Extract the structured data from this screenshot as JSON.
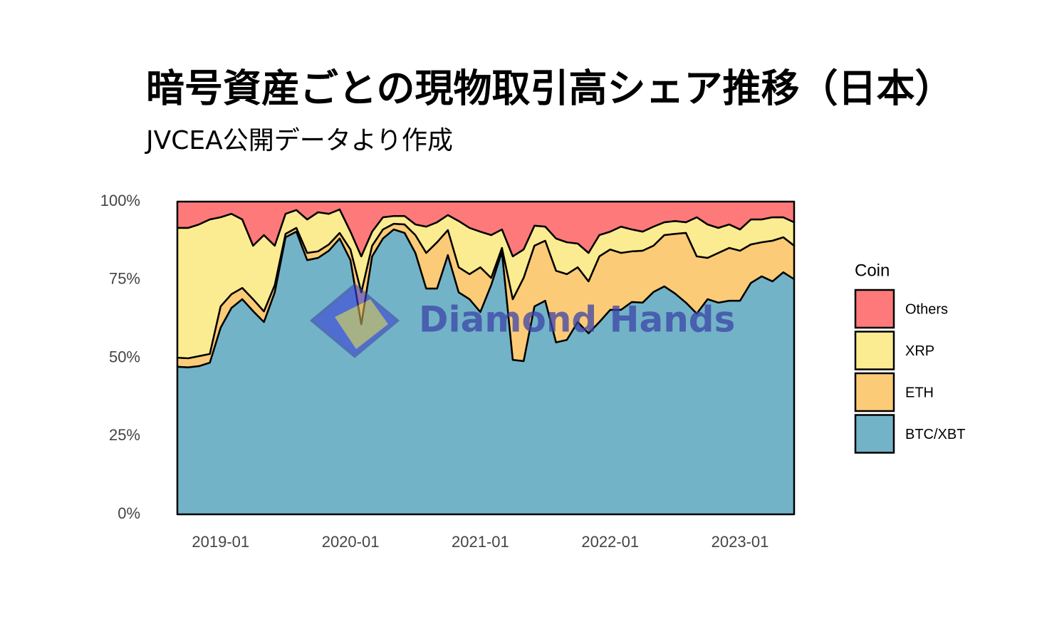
{
  "chart_data": {
    "type": "stacked_area",
    "title": "暗号資産ごとの現物取引高シェア推移（日本）",
    "subtitle": "JVCEA公開データより作成",
    "watermark": "Diamond Hands",
    "legend_title": "Coin",
    "legend": "right",
    "x": [
      "2018-09",
      "2018-10",
      "2018-11",
      "2018-12",
      "2019-01",
      "2019-02",
      "2019-03",
      "2019-04",
      "2019-05",
      "2019-06",
      "2019-07",
      "2019-08",
      "2019-09",
      "2019-10",
      "2019-11",
      "2019-12",
      "2020-01",
      "2020-02",
      "2020-03",
      "2020-04",
      "2020-05",
      "2020-06",
      "2020-07",
      "2020-08",
      "2020-09",
      "2020-10",
      "2020-11",
      "2020-12",
      "2021-01",
      "2021-02",
      "2021-03",
      "2021-04",
      "2021-05",
      "2021-06",
      "2021-07",
      "2021-08",
      "2021-09",
      "2021-10",
      "2021-11",
      "2021-12",
      "2022-01",
      "2022-02",
      "2022-03",
      "2022-04",
      "2022-05",
      "2022-06",
      "2022-07",
      "2022-08",
      "2022-09",
      "2022-10",
      "2022-11",
      "2022-12",
      "2023-01",
      "2023-02",
      "2023-03",
      "2023-04",
      "2023-05",
      "2023-06"
    ],
    "xlim": [
      "2018-09",
      "2023-06"
    ],
    "xticks": [
      "2019-01",
      "2020-01",
      "2021-01",
      "2022-01",
      "2023-01"
    ],
    "ylim": [
      0,
      100
    ],
    "yticks": [
      {
        "value": 0,
        "label": "0%"
      },
      {
        "value": 25,
        "label": "25%"
      },
      {
        "value": 50,
        "label": "50%"
      },
      {
        "value": 75,
        "label": "75%"
      },
      {
        "value": 100,
        "label": "100%"
      }
    ],
    "series": [
      {
        "name": "BTC/XBT",
        "color": "#72b3c7",
        "values": [
          47.2,
          47,
          47.4,
          48.5,
          59.7,
          66,
          68.8,
          65,
          61.5,
          71,
          88.6,
          90.4,
          81.3,
          82,
          84.3,
          88.2,
          81.3,
          60.8,
          82.5,
          88.2,
          91.1,
          90,
          83.6,
          72.2,
          72.2,
          82.9,
          71,
          68.8,
          64.7,
          73.3,
          84,
          49.4,
          49,
          66.5,
          68.3,
          55,
          55.8,
          61.5,
          57.9,
          61.5,
          65.4,
          65.4,
          67.9,
          67.7,
          71.1,
          72.9,
          70.6,
          67.7,
          64.2,
          68.8,
          67.7,
          68.3,
          68.3,
          74,
          76.1,
          74.5,
          77.4,
          75.2
        ]
      },
      {
        "name": "ETH",
        "color": "#fccb77",
        "values": [
          2.9,
          2.9,
          3.2,
          2.8,
          6.8,
          4.4,
          3.6,
          3.8,
          3.4,
          2.3,
          1.1,
          1.2,
          2.3,
          2.1,
          2,
          1.8,
          3.4,
          10.2,
          3.4,
          2.9,
          1.8,
          2.7,
          5.7,
          11.4,
          14.8,
          8,
          8,
          8,
          14.3,
          2.3,
          1.2,
          19.4,
          26.6,
          19.4,
          19.2,
          22.9,
          21,
          17.5,
          16.6,
          21,
          19.3,
          18.2,
          16.2,
          16.6,
          14.8,
          16.4,
          19.1,
          22.3,
          18.3,
          13.2,
          15.9,
          16.9,
          16,
          12.3,
          10.9,
          13,
          11.2,
          10.7
        ]
      },
      {
        "name": "XRP",
        "color": "#fcec91",
        "values": [
          41.5,
          41.7,
          42.1,
          43,
          28.5,
          25.7,
          21.9,
          17.1,
          24.4,
          12.6,
          6.4,
          5.7,
          10.7,
          12.5,
          9.8,
          7.5,
          5.7,
          11.5,
          4.5,
          3.9,
          2.5,
          2.7,
          3.4,
          8.4,
          6.4,
          4.8,
          14.8,
          14.8,
          11.4,
          13.7,
          5.9,
          13.7,
          9.1,
          6.4,
          4.5,
          10.3,
          10.2,
          7.6,
          9.1,
          6.8,
          5.7,
          8.4,
          7,
          6.1,
          6.1,
          4.1,
          4.1,
          3.4,
          12.5,
          10.7,
          8,
          7.5,
          6.8,
          8,
          7.3,
          7.5,
          6.4,
          7.5
        ]
      },
      {
        "name": "Others",
        "color": "#fe7a7a",
        "values": [
          8.4,
          8.4,
          7.3,
          5.7,
          5,
          3.9,
          5.7,
          14.1,
          10.7,
          14.1,
          3.9,
          2.7,
          5.7,
          3.4,
          3.9,
          2.5,
          9.6,
          17.5,
          9.6,
          5,
          4.6,
          4.6,
          7.3,
          8,
          6.6,
          4.3,
          6.2,
          8.4,
          9.6,
          10.7,
          8.9,
          17.5,
          15.3,
          7.7,
          8,
          11.8,
          13,
          13.4,
          16.4,
          10.7,
          9.6,
          8,
          8.9,
          9.6,
          8,
          6.6,
          6.2,
          6.6,
          5,
          7.3,
          8.4,
          7.3,
          8.9,
          5.7,
          5.7,
          5,
          5,
          6.6
        ]
      }
    ]
  }
}
